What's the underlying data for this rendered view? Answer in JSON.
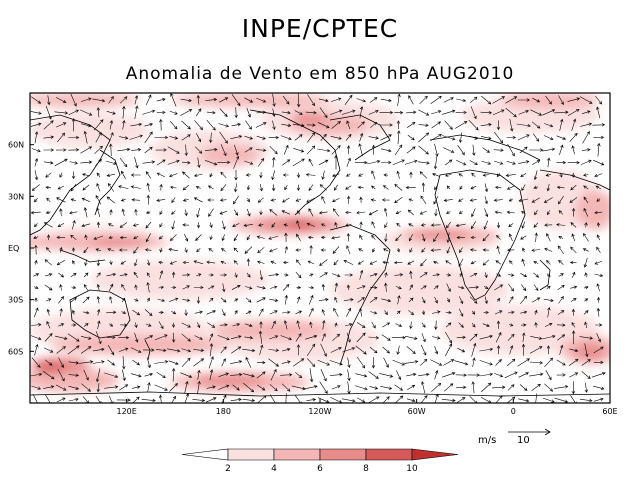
{
  "header": {
    "title": "INPE/CPTEC",
    "subtitle": "Anomalia de Vento em 850 hPa AUG2010"
  },
  "map": {
    "projection": "cylindrical-equidistant",
    "lon_range": [
      60,
      420
    ],
    "lat_range": [
      -90,
      90
    ],
    "lat_ticks": [
      {
        "value": 60,
        "label": "60N"
      },
      {
        "value": 30,
        "label": "30N"
      },
      {
        "value": 0,
        "label": "EQ"
      },
      {
        "value": -30,
        "label": "30S"
      },
      {
        "value": -60,
        "label": "60S"
      }
    ],
    "lon_ticks": [
      {
        "value": 120,
        "label": "120E"
      },
      {
        "value": 180,
        "label": "180"
      },
      {
        "value": 240,
        "label": "120W"
      },
      {
        "value": 300,
        "label": "60W"
      },
      {
        "value": 360,
        "label": "0"
      },
      {
        "value": 420,
        "label": "60E"
      }
    ],
    "colors": {
      "frame": "#000000",
      "shade_2_4": "#fbe0e0",
      "shade_4_6": "#f4b6b6",
      "shade_6_8": "#e78b8b",
      "shade_8_10": "#d65a5a",
      "shade_10p": "#c0302f",
      "vector": "#000000"
    },
    "vector_scale": {
      "unit": "m/s",
      "value": "10"
    }
  },
  "colorbar": {
    "labels": [
      "2",
      "4",
      "6",
      "8",
      "10"
    ],
    "colors": [
      "#ffffff",
      "#fbe0e0",
      "#f4b6b6",
      "#e78b8b",
      "#d65a5a",
      "#c0302f"
    ]
  }
}
